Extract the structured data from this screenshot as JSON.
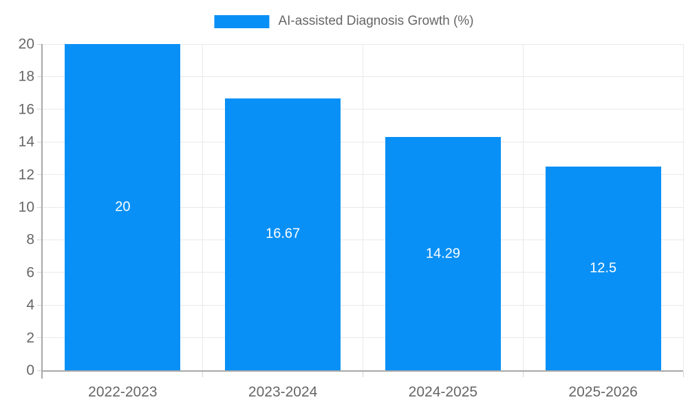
{
  "legend": {
    "label": "AI-assisted Diagnosis Growth (%)"
  },
  "chart_data": {
    "type": "bar",
    "title": "",
    "categories": [
      "2022-2023",
      "2023-2024",
      "2024-2025",
      "2025-2026"
    ],
    "values": [
      20,
      16.67,
      14.29,
      12.5
    ],
    "bar_labels": [
      "20",
      "16.67",
      "14.29",
      "12.5"
    ],
    "series_name": "AI-assisted Diagnosis Growth (%)",
    "xlabel": "",
    "ylabel": "",
    "ylim": [
      0,
      20
    ],
    "ytick_step": 2,
    "ytick_labels": [
      "0",
      "2",
      "4",
      "6",
      "8",
      "10",
      "12",
      "14",
      "16",
      "18",
      "20"
    ],
    "grid": "on",
    "legend_position": "top-center",
    "bar_label_position": "center-inside",
    "colors": {
      "bar": "#0990f6",
      "bar_label_text": "#ffffff",
      "axis_line": "#a8a8a8",
      "grid_line": "#e9e9e9",
      "tick_text": "#666666",
      "legend_text": "#666666",
      "background": "#ffffff"
    }
  }
}
